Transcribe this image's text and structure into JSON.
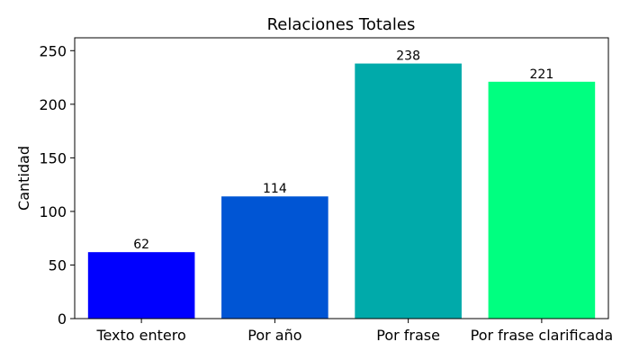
{
  "chart_data": {
    "type": "bar",
    "title": "Relaciones Totales",
    "xlabel": "",
    "ylabel": "Cantidad",
    "categories": [
      "Texto entero",
      "Por año",
      "Por frase",
      "Por frase clarificada"
    ],
    "values": [
      62,
      114,
      238,
      221
    ],
    "colors": [
      "#0000ff",
      "#0055d4",
      "#00aaaa",
      "#00ff80"
    ],
    "ylim": [
      0,
      262
    ],
    "yticks": [
      0,
      50,
      100,
      150,
      200,
      250
    ],
    "grid": false,
    "legend": "none"
  }
}
